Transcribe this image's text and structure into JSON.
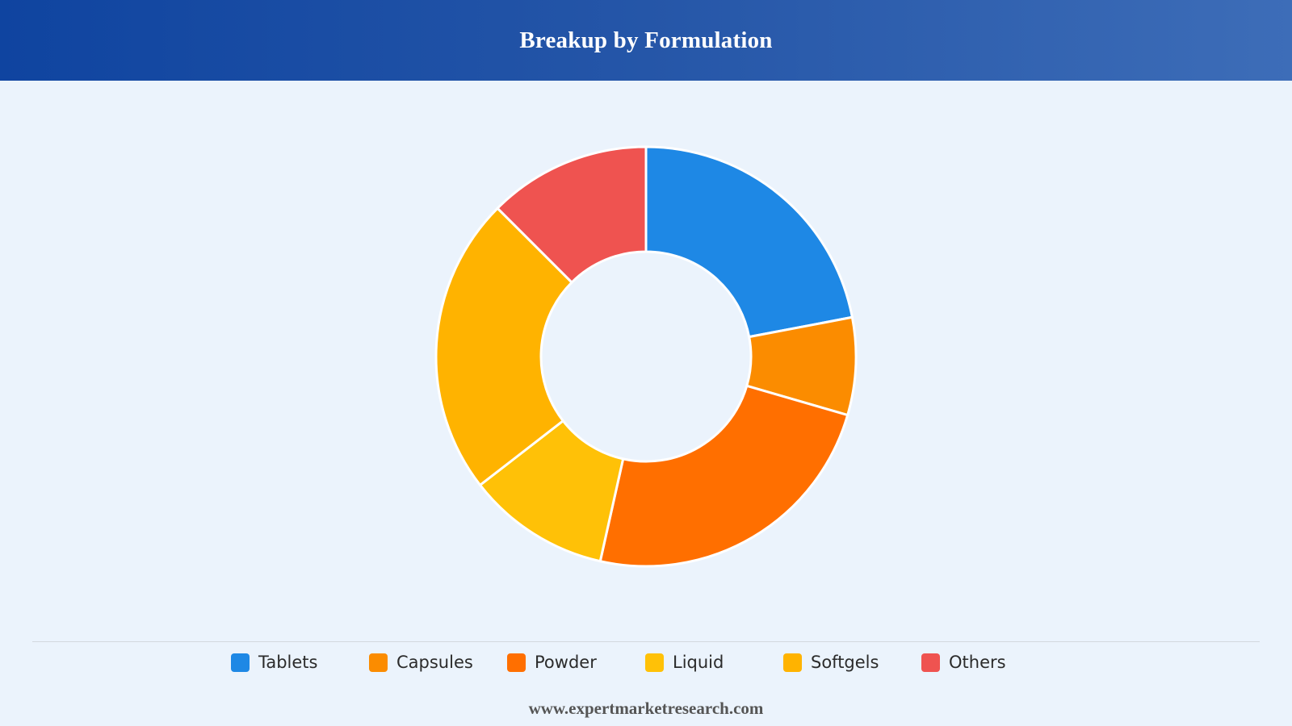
{
  "header": {
    "title": "Breakup by Formulation"
  },
  "chart_data": {
    "type": "pie",
    "variant": "donut",
    "title": "Breakup by Formulation",
    "categories": [
      "Tablets",
      "Capsules",
      "Powder",
      "Liquid",
      "Softgels",
      "Others"
    ],
    "values": [
      22,
      7.5,
      24,
      11,
      23,
      12.5
    ],
    "colors": [
      "#1e88e5",
      "#fb8c00",
      "#ff6f00",
      "#ffc107",
      "#ffb300",
      "#ef5350"
    ],
    "legend_position": "bottom",
    "grid": false
  },
  "legend": {
    "items": [
      {
        "label": "Tablets",
        "color": "#1e88e5"
      },
      {
        "label": "Capsules",
        "color": "#fb8c00"
      },
      {
        "label": "Powder",
        "color": "#ff6f00"
      },
      {
        "label": "Liquid",
        "color": "#ffc107"
      },
      {
        "label": "Softgels",
        "color": "#ffb300"
      },
      {
        "label": "Others",
        "color": "#ef5350"
      }
    ]
  },
  "footer": {
    "source": "www.expertmarketresearch.com"
  }
}
